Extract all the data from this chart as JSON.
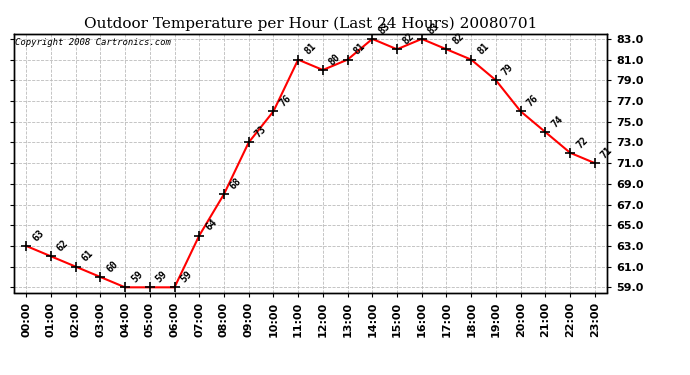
{
  "title": "Outdoor Temperature per Hour (Last 24 Hours) 20080701",
  "copyright_text": "Copyright 2008 Cartronics.com",
  "hours": [
    "00:00",
    "01:00",
    "02:00",
    "03:00",
    "04:00",
    "05:00",
    "06:00",
    "07:00",
    "08:00",
    "09:00",
    "10:00",
    "11:00",
    "12:00",
    "13:00",
    "14:00",
    "15:00",
    "16:00",
    "17:00",
    "18:00",
    "19:00",
    "20:00",
    "21:00",
    "22:00",
    "23:00"
  ],
  "temps": [
    63,
    62,
    61,
    60,
    59,
    59,
    59,
    64,
    68,
    73,
    76,
    81,
    80,
    81,
    83,
    82,
    83,
    82,
    81,
    79,
    76,
    74,
    72,
    71
  ],
  "ylim_min": 58.5,
  "ylim_max": 83.5,
  "yticks": [
    59.0,
    61.0,
    63.0,
    65.0,
    67.0,
    69.0,
    71.0,
    73.0,
    75.0,
    77.0,
    79.0,
    81.0,
    83.0
  ],
  "line_color": "red",
  "marker": "+",
  "marker_size": 7,
  "marker_color": "black",
  "grid_color": "#bbbbbb",
  "grid_style": "--",
  "background_color": "#ffffff",
  "title_fontsize": 11,
  "label_fontsize": 7,
  "tick_fontsize": 8,
  "copyright_fontsize": 6.5
}
